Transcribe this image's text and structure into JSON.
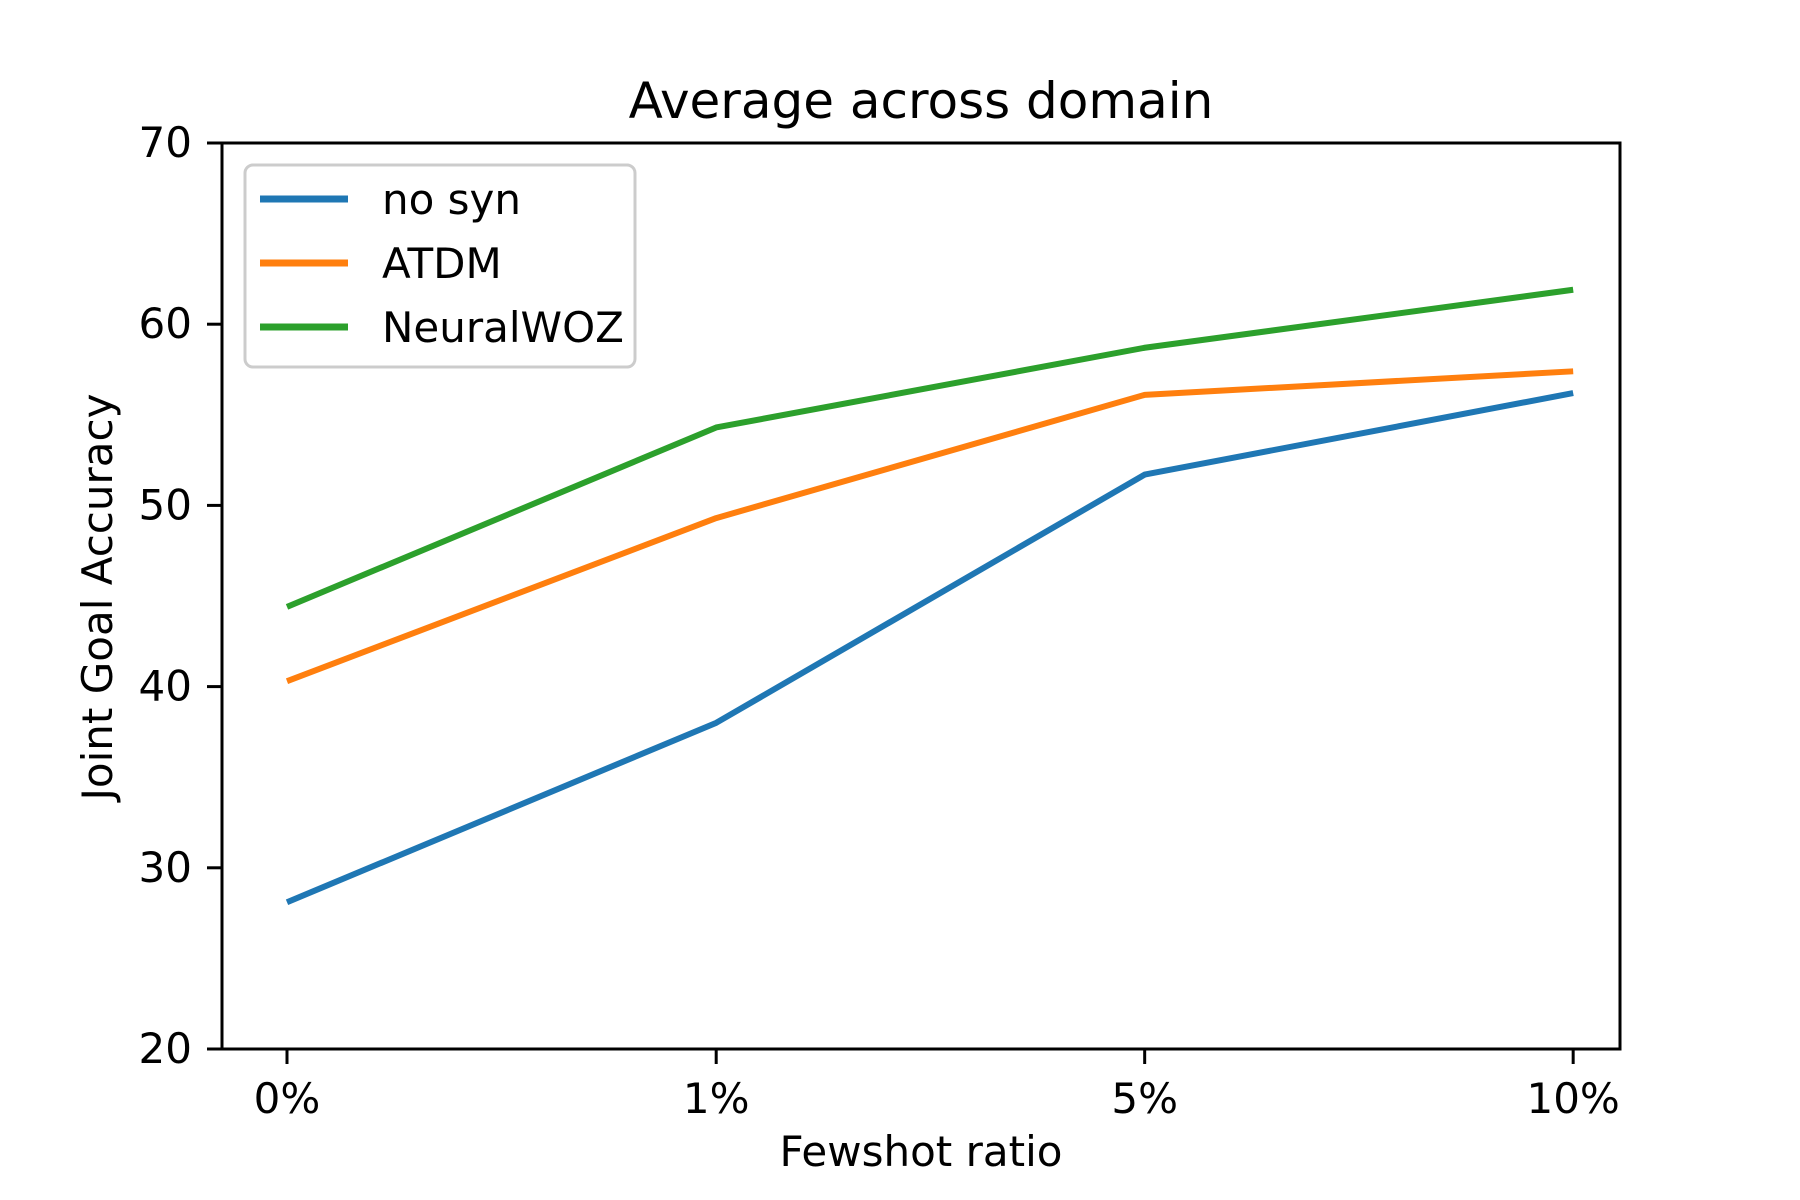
{
  "title": "Average across domain",
  "chart_data": {
    "type": "line",
    "title": "Average across domain",
    "xlabel": "Fewshot ratio",
    "ylabel": "Joint Goal Accuracy",
    "categories": [
      "0%",
      "1%",
      "5%",
      "10%"
    ],
    "series": [
      {
        "name": "no syn",
        "color": "#1f77b4",
        "values": [
          28.1,
          38.0,
          51.7,
          56.2
        ]
      },
      {
        "name": "ATDM",
        "color": "#ff7f0e",
        "values": [
          40.3,
          49.3,
          56.1,
          57.4
        ]
      },
      {
        "name": "NeuralWOZ",
        "color": "#2ca02c",
        "values": [
          44.4,
          54.3,
          58.7,
          61.9
        ]
      }
    ],
    "ylim": [
      20,
      70
    ],
    "yticks": [
      20,
      30,
      40,
      50,
      60,
      70
    ],
    "grid": false,
    "legend_position": "upper left",
    "legend_frame_color": "#cccccc",
    "axis_color": "#000000"
  }
}
